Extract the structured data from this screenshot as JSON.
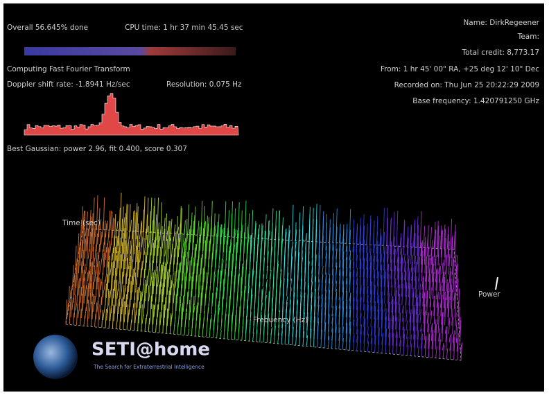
{
  "status": {
    "overall": "Overall 56.645% done",
    "cpu_time": "CPU time: 1 hr 37 min 45.45 sec",
    "activity": "Computing Fast Fourier Transform",
    "doppler": "Doppler shift rate: -1.8941 Hz/sec",
    "resolution": "Resolution: 0.075 Hz",
    "gaussian": "Best Gaussian: power 2.96, fit 0.400, score 0.307"
  },
  "user": {
    "name": "Name: DirkRegeener",
    "team": "Team:",
    "credit": "Total credit: 8,773.17",
    "from": "From: 1 hr 45' 00\" RA, +25 deg 12' 10\" Dec",
    "recorded": "Recorded on: Thu Jun 25 20:22:29 2009",
    "base_frequency": "Base frequency: 1.420791250 GHz"
  },
  "plot": {
    "time_axis": "Time (sec)",
    "frequency_axis": "Frequency (Hz)",
    "power_axis": "Power"
  },
  "logo": {
    "title": "SETI@home",
    "tagline": "The Search for Extraterrestrial Intelligence"
  }
}
